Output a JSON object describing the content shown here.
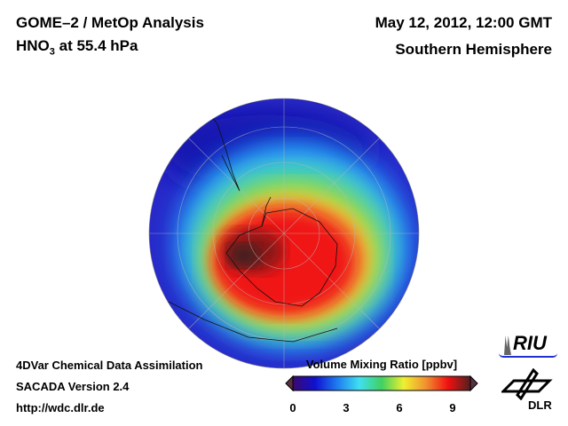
{
  "header": {
    "title_line1": "GOME–2 / MetOp Analysis",
    "species": "HNO",
    "species_sub": "3",
    "level": " at 55.4 hPa",
    "date": "May 12, 2012, 12:00 GMT",
    "region": "Southern Hemisphere"
  },
  "footer": {
    "line1": "4DVar Chemical Data Assimilation",
    "line2": "SACADA Version 2.4",
    "line3": "http://wdc.dlr.de"
  },
  "colorbar": {
    "label": "Volume Mixing Ratio [ppbv]",
    "range": [
      0,
      10
    ],
    "ticks": [
      "0",
      "3",
      "6",
      "9"
    ],
    "colors": [
      "#3a0a6e",
      "#1010d0",
      "#1e7cf0",
      "#40e0f0",
      "#40d060",
      "#f0f030",
      "#f09030",
      "#f01010",
      "#502020"
    ]
  },
  "logos": {
    "riu": "RIU",
    "dlr": "DLR"
  }
}
